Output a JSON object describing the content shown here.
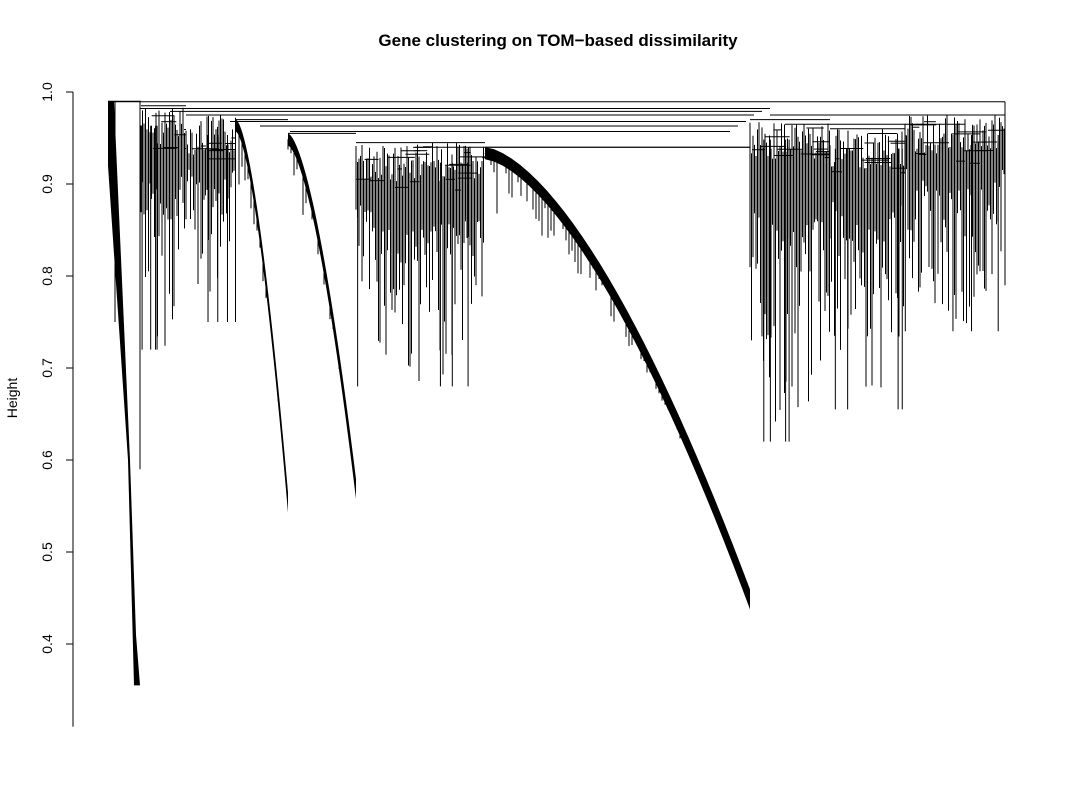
{
  "chart_data": {
    "type": "dendrogram",
    "title": "Gene clustering on TOM−based dissimilarity",
    "xlabel": "",
    "ylabel": "Height",
    "ylim": [
      0.31,
      1.0
    ],
    "yticks": [
      0.4,
      0.5,
      0.6,
      0.7,
      0.8,
      0.9,
      1.0
    ],
    "ytick_labels": [
      "0.4",
      "0.5",
      "0.6",
      "0.7",
      "0.8",
      "0.9",
      "1.0"
    ],
    "grid": false,
    "legend": "none",
    "line_color": "#000000",
    "root_height": 0.985,
    "clusters": [
      {
        "top_height": 0.99,
        "leaf_min_height": 0.355
      },
      {
        "top_height": 0.985,
        "leaf_min_height": 0.72
      },
      {
        "top_height": 0.975,
        "leaf_min_height": 0.75
      },
      {
        "top_height": 0.97,
        "leaf_min_height": 0.56
      },
      {
        "top_height": 0.955,
        "leaf_min_height": 0.575
      },
      {
        "top_height": 0.945,
        "leaf_min_height": 0.68
      },
      {
        "top_height": 0.94,
        "leaf_min_height": 0.455
      },
      {
        "top_height": 0.97,
        "leaf_min_height": 0.62
      },
      {
        "top_height": 0.96,
        "leaf_min_height": 0.655
      },
      {
        "top_height": 0.975,
        "leaf_min_height": 0.74
      }
    ]
  }
}
